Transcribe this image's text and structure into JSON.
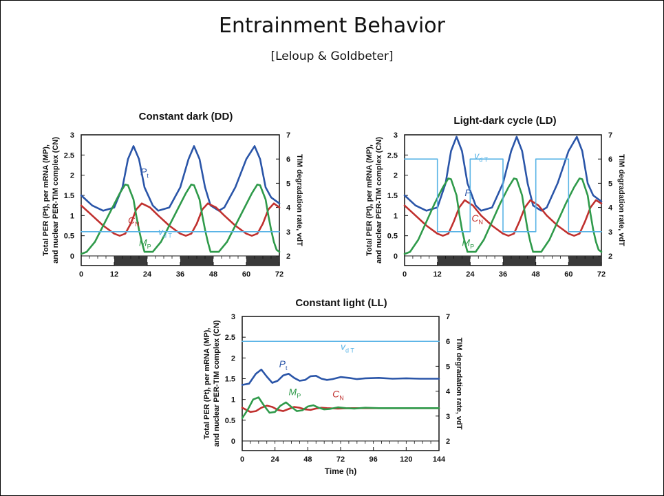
{
  "slide": {
    "title": "Entrainment Behavior",
    "subtitle": "[Leloup & Goldbeter]"
  },
  "colors": {
    "pt": "#2a55a8",
    "cn": "#c0302e",
    "mp": "#2f9a4a",
    "vdt": "#5ab4e6",
    "dark_bar": "#3a3a3a"
  },
  "chart_data": [
    {
      "id": "dd",
      "type": "line",
      "title": "Constant dark (DD)",
      "ylabel_line1": "Total PER (Pt), per mRNA (MP),",
      "ylabel_line2": "and nuclear PER-TIM complex (CN)",
      "y2label": "TIM degradation rate, vdT",
      "xlabel": "",
      "xlim": [
        0,
        72
      ],
      "ylim": [
        0,
        3
      ],
      "y2lim": [
        2,
        7
      ],
      "x_ticks": [
        "0",
        "12",
        "24",
        "36",
        "48",
        "60",
        "72"
      ],
      "y_ticks": [
        "0",
        "0.5",
        "1",
        "1.5",
        "2",
        "2.5",
        "3"
      ],
      "y2_ticks": [
        "2",
        "3",
        "4",
        "5",
        "6",
        "7"
      ],
      "dark_intervals": [
        [
          12,
          24
        ],
        [
          36,
          48
        ],
        [
          60,
          72
        ]
      ],
      "series": [
        {
          "name": "Pt",
          "color_key": "pt",
          "x": [
            0,
            4,
            8,
            12,
            15,
            17,
            19,
            21,
            23,
            26,
            28,
            32,
            36,
            39,
            41,
            43,
            45,
            47,
            50,
            52,
            56,
            60,
            63,
            65,
            67,
            69,
            71,
            72
          ],
          "y": [
            1.5,
            1.25,
            1.12,
            1.2,
            1.7,
            2.4,
            2.72,
            2.4,
            1.7,
            1.25,
            1.12,
            1.2,
            1.7,
            2.4,
            2.72,
            2.4,
            1.7,
            1.25,
            1.12,
            1.2,
            1.7,
            2.4,
            2.72,
            2.4,
            1.7,
            1.45,
            1.35,
            1.3
          ]
        },
        {
          "name": "CN",
          "color_key": "cn",
          "x": [
            0,
            4,
            8,
            12,
            14,
            16,
            18,
            20,
            22,
            25,
            28,
            32,
            36,
            38,
            40,
            42,
            44,
            46,
            49,
            52,
            56,
            60,
            62,
            64,
            66,
            68,
            70,
            72
          ],
          "y": [
            1.25,
            1.0,
            0.75,
            0.55,
            0.5,
            0.55,
            0.8,
            1.15,
            1.3,
            1.2,
            1.0,
            0.75,
            0.55,
            0.5,
            0.55,
            0.8,
            1.15,
            1.3,
            1.2,
            1.0,
            0.75,
            0.55,
            0.5,
            0.55,
            0.8,
            1.15,
            1.3,
            1.2
          ]
        },
        {
          "name": "MP",
          "color_key": "mp",
          "x": [
            0,
            2,
            5,
            8,
            11,
            14,
            16,
            17,
            19,
            20,
            21,
            22,
            23,
            26,
            29,
            32,
            35,
            38,
            40,
            41,
            43,
            44,
            45,
            46,
            47,
            50,
            53,
            56,
            59,
            62,
            64,
            65,
            67,
            68,
            69,
            70,
            71,
            72
          ],
          "y": [
            0.05,
            0.1,
            0.35,
            0.75,
            1.15,
            1.55,
            1.77,
            1.75,
            1.4,
            1.0,
            0.65,
            0.35,
            0.1,
            0.1,
            0.35,
            0.75,
            1.15,
            1.55,
            1.77,
            1.75,
            1.4,
            1.0,
            0.65,
            0.35,
            0.1,
            0.1,
            0.35,
            0.75,
            1.15,
            1.55,
            1.77,
            1.75,
            1.4,
            1.0,
            0.65,
            0.35,
            0.15,
            0.1
          ]
        },
        {
          "name": "vdT",
          "color_key": "vdt",
          "axis": "y2",
          "x": [
            0,
            72
          ],
          "y": [
            3,
            3
          ]
        }
      ],
      "labels": [
        {
          "text": "Pt",
          "main": "P",
          "sub": "t",
          "x": 21.5,
          "y": 2.0,
          "color_key": "pt"
        },
        {
          "text": "CN",
          "main": "C",
          "sub": "N",
          "x": 17,
          "y": 0.8,
          "color_key": "cn"
        },
        {
          "text": "vdT",
          "main": "v",
          "sub": "d T",
          "x": 28,
          "y": 0.52,
          "color_key": "vdt"
        },
        {
          "text": "MP",
          "main": "M",
          "sub": "P",
          "x": 21,
          "y": 0.25,
          "color_key": "mp"
        }
      ]
    },
    {
      "id": "ld",
      "type": "line",
      "title": "Light-dark cycle (LD)",
      "ylabel_line1": "Total PER (Pt), per mRNA (MP),",
      "ylabel_line2": "and nuclear PER-TIM complex (CN)",
      "y2label": "TIM degradation rate, vdT",
      "xlabel": "",
      "xlim": [
        0,
        72
      ],
      "ylim": [
        0,
        3
      ],
      "y2lim": [
        2,
        7
      ],
      "x_ticks": [
        "0",
        "12",
        "24",
        "36",
        "48",
        "60",
        "72"
      ],
      "y_ticks": [
        "0",
        "0.5",
        "1",
        "1.5",
        "2",
        "2.5",
        "3"
      ],
      "y2_ticks": [
        "2",
        "3",
        "4",
        "5",
        "6",
        "7"
      ],
      "dark_intervals": [
        [
          12,
          24
        ],
        [
          36,
          48
        ],
        [
          60,
          72
        ]
      ],
      "series": [
        {
          "name": "Pt",
          "color_key": "pt",
          "x": [
            0,
            4,
            8,
            12,
            15,
            17,
            19,
            21,
            23,
            26,
            28,
            32,
            36,
            39,
            41,
            43,
            45,
            47,
            50,
            52,
            56,
            60,
            63,
            65,
            67,
            69,
            71,
            72
          ],
          "y": [
            1.5,
            1.25,
            1.12,
            1.2,
            1.8,
            2.6,
            2.95,
            2.6,
            1.8,
            1.25,
            1.12,
            1.2,
            1.8,
            2.6,
            2.95,
            2.6,
            1.8,
            1.25,
            1.12,
            1.2,
            1.8,
            2.6,
            2.95,
            2.6,
            1.8,
            1.5,
            1.4,
            1.35
          ]
        },
        {
          "name": "CN",
          "color_key": "cn",
          "x": [
            0,
            4,
            8,
            12,
            14,
            16,
            18,
            20,
            22,
            25,
            28,
            32,
            36,
            38,
            40,
            42,
            44,
            46,
            49,
            52,
            56,
            60,
            62,
            64,
            66,
            68,
            70,
            72
          ],
          "y": [
            1.25,
            1.0,
            0.75,
            0.55,
            0.5,
            0.55,
            0.85,
            1.2,
            1.38,
            1.25,
            1.0,
            0.75,
            0.55,
            0.5,
            0.55,
            0.85,
            1.2,
            1.38,
            1.25,
            1.0,
            0.75,
            0.55,
            0.5,
            0.55,
            0.85,
            1.2,
            1.38,
            1.3
          ]
        },
        {
          "name": "MP",
          "color_key": "mp",
          "x": [
            0,
            2,
            5,
            8,
            11,
            14,
            16,
            17,
            19,
            20,
            21,
            22,
            23,
            26,
            29,
            32,
            35,
            38,
            40,
            41,
            43,
            44,
            45,
            46,
            47,
            50,
            53,
            56,
            59,
            62,
            64,
            65,
            67,
            68,
            69,
            70,
            71,
            72
          ],
          "y": [
            0.05,
            0.1,
            0.4,
            0.85,
            1.3,
            1.7,
            1.92,
            1.9,
            1.5,
            1.05,
            0.65,
            0.35,
            0.1,
            0.1,
            0.4,
            0.85,
            1.3,
            1.7,
            1.92,
            1.9,
            1.5,
            1.05,
            0.65,
            0.35,
            0.1,
            0.1,
            0.4,
            0.85,
            1.3,
            1.7,
            1.92,
            1.9,
            1.5,
            1.05,
            0.65,
            0.35,
            0.15,
            0.1
          ]
        },
        {
          "name": "vdT",
          "color_key": "vdt",
          "axis": "y2",
          "x": [
            0,
            12,
            12,
            24,
            24,
            36,
            36,
            48,
            48,
            60,
            60,
            72
          ],
          "y": [
            6,
            6,
            3,
            3,
            6,
            6,
            3,
            3,
            6,
            6,
            3,
            3
          ]
        }
      ],
      "labels": [
        {
          "text": "vdT",
          "main": "v",
          "sub": "d T",
          "x": 25.5,
          "y": 2.4,
          "color_key": "vdt"
        },
        {
          "text": "Pt",
          "main": "P",
          "sub": "t",
          "x": 22,
          "y": 1.48,
          "color_key": "pt"
        },
        {
          "text": "CN",
          "main": "C",
          "sub": "N",
          "x": 24.5,
          "y": 0.85,
          "color_key": "cn"
        },
        {
          "text": "MP",
          "main": "M",
          "sub": "P",
          "x": 21,
          "y": 0.25,
          "color_key": "mp"
        }
      ]
    },
    {
      "id": "ll",
      "type": "line",
      "title": "Constant light (LL)",
      "ylabel_line1": "Total PER (Pt), per mRNA (MP),",
      "ylabel_line2": "and nuclear PER-TIM complex (CN)",
      "y2label": "TIM degradation rate, vdT",
      "xlabel": "Time (h)",
      "xlim": [
        0,
        144
      ],
      "ylim": [
        0,
        3
      ],
      "y2lim": [
        2,
        7
      ],
      "x_ticks": [
        "0",
        "24",
        "48",
        "72",
        "96",
        "120",
        "144"
      ],
      "y_ticks": [
        "0",
        "0.5",
        "1",
        "1.5",
        "2",
        "2.5",
        "3"
      ],
      "y2_ticks": [
        "2",
        "3",
        "4",
        "5",
        "6",
        "7"
      ],
      "dark_intervals": [],
      "series": [
        {
          "name": "Pt",
          "color_key": "pt",
          "x": [
            0,
            5,
            10,
            14,
            18,
            22,
            26,
            30,
            34,
            38,
            42,
            46,
            50,
            54,
            58,
            62,
            66,
            72,
            78,
            84,
            90,
            100,
            110,
            120,
            130,
            144
          ],
          "y": [
            1.35,
            1.38,
            1.62,
            1.72,
            1.55,
            1.4,
            1.45,
            1.58,
            1.62,
            1.52,
            1.45,
            1.47,
            1.56,
            1.57,
            1.5,
            1.47,
            1.49,
            1.54,
            1.52,
            1.49,
            1.51,
            1.52,
            1.5,
            1.51,
            1.5,
            1.5
          ]
        },
        {
          "name": "CN",
          "color_key": "cn",
          "x": [
            0,
            6,
            10,
            14,
            18,
            22,
            26,
            30,
            34,
            38,
            42,
            46,
            50,
            54,
            58,
            62,
            70,
            80,
            90,
            100,
            120,
            144
          ],
          "y": [
            0.8,
            0.7,
            0.72,
            0.8,
            0.85,
            0.82,
            0.75,
            0.72,
            0.77,
            0.82,
            0.8,
            0.76,
            0.75,
            0.78,
            0.8,
            0.79,
            0.78,
            0.79,
            0.79,
            0.79,
            0.79,
            0.79
          ]
        },
        {
          "name": "MP",
          "color_key": "mp",
          "x": [
            0,
            4,
            8,
            12,
            16,
            20,
            24,
            28,
            32,
            36,
            40,
            44,
            48,
            52,
            56,
            60,
            64,
            70,
            76,
            82,
            90,
            100,
            110,
            120,
            144
          ],
          "y": [
            0.55,
            0.75,
            1.0,
            1.05,
            0.85,
            0.68,
            0.7,
            0.85,
            0.93,
            0.82,
            0.72,
            0.74,
            0.83,
            0.86,
            0.8,
            0.76,
            0.77,
            0.81,
            0.79,
            0.78,
            0.8,
            0.79,
            0.79,
            0.79,
            0.79
          ]
        },
        {
          "name": "vdT",
          "color_key": "vdt",
          "axis": "y2",
          "x": [
            0,
            144
          ],
          "y": [
            6,
            6
          ]
        }
      ],
      "labels": [
        {
          "text": "vdT",
          "main": "v",
          "sub": "d T",
          "x": 72,
          "y": 2.2,
          "color_key": "vdt"
        },
        {
          "text": "Pt",
          "main": "P",
          "sub": "t",
          "x": 27,
          "y": 1.77,
          "color_key": "pt"
        },
        {
          "text": "MP",
          "main": "M",
          "sub": "P",
          "x": 34,
          "y": 1.1,
          "color_key": "mp"
        },
        {
          "text": "CN",
          "main": "C",
          "sub": "N",
          "x": 66,
          "y": 1.05,
          "color_key": "cn"
        }
      ]
    }
  ]
}
